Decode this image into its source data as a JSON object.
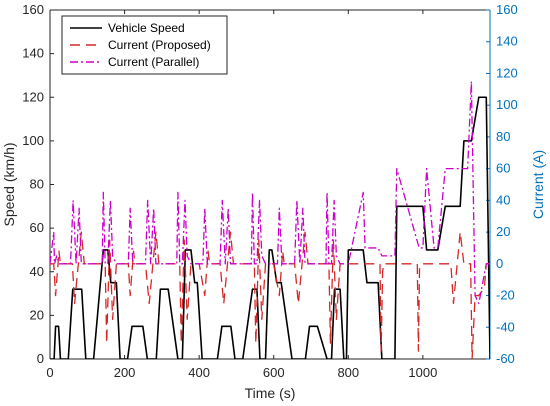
{
  "chart_data": {
    "type": "line",
    "xlabel": "Time (s)",
    "ylabel": "Speed (km/h)",
    "y2label": "Current (A)",
    "xlim": [
      0,
      1180
    ],
    "ylim": [
      0,
      160
    ],
    "y2lim": [
      -60,
      160
    ],
    "xticks": [
      0,
      200,
      400,
      600,
      800,
      1000
    ],
    "yticks": [
      0,
      20,
      40,
      60,
      80,
      100,
      120,
      140,
      160
    ],
    "y2ticks": [
      -60,
      -40,
      -20,
      0,
      20,
      40,
      60,
      80,
      100,
      120,
      140,
      160
    ],
    "legend_position": "top-left",
    "grid": false,
    "series": [
      {
        "name": "Vehicle Speed",
        "axis": "left",
        "color": "#000000",
        "dash": "solid",
        "x": [
          0,
          11,
          15,
          23,
          28,
          49,
          61,
          85,
          96,
          117,
          143,
          155,
          163,
          178,
          188,
          195,
          208,
          220,
          249,
          261,
          285,
          296,
          317,
          343,
          355,
          363,
          378,
          388,
          395,
          408,
          420,
          449,
          461,
          485,
          496,
          517,
          543,
          555,
          563,
          578,
          588,
          595,
          608,
          620,
          649,
          661,
          685,
          696,
          717,
          743,
          755,
          763,
          778,
          788,
          795,
          800,
          840,
          850,
          880,
          890,
          925,
          930,
          1000,
          1010,
          1030,
          1040,
          1060,
          1070,
          1100,
          1110,
          1120,
          1130,
          1150,
          1170,
          1180
        ],
        "y": [
          0,
          0,
          15,
          15,
          0,
          0,
          32,
          32,
          0,
          0,
          50,
          50,
          35,
          35,
          0,
          0,
          0,
          15,
          15,
          0,
          0,
          32,
          32,
          0,
          0,
          50,
          50,
          35,
          35,
          0,
          0,
          0,
          15,
          15,
          0,
          0,
          32,
          32,
          0,
          0,
          50,
          50,
          35,
          35,
          0,
          0,
          0,
          15,
          15,
          0,
          0,
          32,
          32,
          0,
          0,
          50,
          50,
          35,
          35,
          0,
          0,
          70,
          70,
          50,
          50,
          50,
          70,
          70,
          70,
          100,
          100,
          100,
          120,
          120,
          0
        ]
      },
      {
        "name": "Current (Proposed)",
        "axis": "right",
        "color": "#D62728",
        "dash": "10,6",
        "x": [
          0,
          10,
          15,
          24,
          28,
          35,
          55,
          60,
          66,
          84,
          92,
          96,
          120,
          140,
          148,
          152,
          160,
          168,
          178,
          190,
          210,
          215,
          224,
          228,
          240,
          256,
          266,
          284,
          292,
          296,
          320,
          340,
          348,
          352,
          360,
          368,
          378,
          400,
          415,
          424,
          428,
          440,
          456,
          466,
          484,
          492,
          496,
          520,
          540,
          548,
          552,
          560,
          568,
          578,
          600,
          615,
          624,
          628,
          640,
          656,
          666,
          684,
          692,
          696,
          720,
          740,
          748,
          752,
          760,
          768,
          778,
          800,
          845,
          850,
          880,
          885,
          888,
          892,
          895,
          925,
          930,
          945,
          985,
          988,
          991,
          1000,
          1010,
          1035,
          1040,
          1055,
          1075,
          1082,
          1100,
          1110,
          1120,
          1128,
          1132,
          1140,
          1150,
          1165,
          1170,
          1180
        ],
        "y": [
          0,
          0,
          -20,
          8,
          0,
          0,
          0,
          0,
          -25,
          20,
          0,
          0,
          0,
          0,
          0,
          -50,
          15,
          -35,
          0,
          0,
          0,
          -20,
          8,
          0,
          0,
          0,
          -25,
          20,
          0,
          0,
          0,
          0,
          0,
          -50,
          15,
          -35,
          0,
          0,
          -20,
          8,
          0,
          0,
          0,
          -25,
          20,
          0,
          0,
          0,
          0,
          0,
          -50,
          15,
          -35,
          0,
          0,
          -20,
          8,
          0,
          0,
          0,
          -25,
          20,
          0,
          0,
          0,
          0,
          0,
          -50,
          15,
          -35,
          0,
          0,
          0,
          0,
          0,
          0,
          -55,
          -5,
          0,
          0,
          0,
          0,
          0,
          -55,
          -2,
          0,
          0,
          0,
          0,
          0,
          0,
          -25,
          20,
          0,
          0,
          0,
          -60,
          -20,
          -20,
          -15,
          0,
          0
        ]
      },
      {
        "name": "Current (Parallel)",
        "axis": "right",
        "color": "#CC00CC",
        "dash": "8,3,2,3",
        "x": [
          0,
          10,
          12,
          18,
          25,
          30,
          50,
          55,
          62,
          70,
          78,
          84,
          96,
          120,
          140,
          143,
          148,
          155,
          162,
          168,
          178,
          210,
          215,
          222,
          230,
          240,
          256,
          262,
          270,
          278,
          284,
          296,
          320,
          340,
          343,
          348,
          355,
          362,
          368,
          378,
          410,
          415,
          422,
          430,
          440,
          456,
          462,
          470,
          478,
          484,
          496,
          520,
          540,
          543,
          548,
          555,
          562,
          568,
          578,
          610,
          615,
          622,
          630,
          640,
          656,
          662,
          670,
          678,
          684,
          696,
          720,
          740,
          743,
          748,
          755,
          762,
          768,
          778,
          800,
          840,
          845,
          850,
          860,
          880,
          890,
          925,
          930,
          990,
          1000,
          1010,
          1030,
          1040,
          1060,
          1080,
          1100,
          1110,
          1120,
          1130,
          1140,
          1150,
          1170,
          1180
        ],
        "y": [
          0,
          20,
          0,
          5,
          0,
          0,
          0,
          0,
          40,
          0,
          35,
          0,
          0,
          0,
          0,
          45,
          0,
          0,
          40,
          5,
          0,
          0,
          35,
          0,
          0,
          0,
          0,
          40,
          0,
          35,
          0,
          0,
          0,
          0,
          45,
          0,
          0,
          40,
          5,
          0,
          0,
          35,
          0,
          0,
          0,
          0,
          40,
          0,
          35,
          0,
          0,
          0,
          0,
          45,
          0,
          0,
          40,
          5,
          0,
          0,
          35,
          0,
          0,
          0,
          0,
          40,
          0,
          35,
          0,
          0,
          0,
          0,
          45,
          0,
          0,
          40,
          5,
          0,
          0,
          45,
          10,
          10,
          10,
          10,
          5,
          5,
          60,
          10,
          10,
          60,
          10,
          10,
          60,
          60,
          60,
          60,
          60,
          115,
          -20,
          -25,
          0,
          0
        ]
      }
    ]
  }
}
